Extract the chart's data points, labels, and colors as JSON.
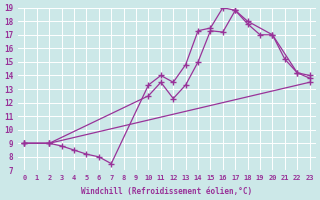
{
  "title": "",
  "xlabel": "Windchill (Refroidissement éolien,°C)",
  "ylabel": "",
  "background_color": "#cce8e8",
  "line_color": "#993399",
  "grid_color": "#ffffff",
  "xlim": [
    -0.5,
    23.5
  ],
  "ylim": [
    7,
    19
  ],
  "xticks": [
    0,
    1,
    2,
    3,
    4,
    5,
    6,
    7,
    8,
    9,
    10,
    11,
    12,
    13,
    14,
    15,
    16,
    17,
    18,
    19,
    20,
    21,
    22,
    23
  ],
  "yticks": [
    7,
    8,
    9,
    10,
    11,
    12,
    13,
    14,
    15,
    16,
    17,
    18,
    19
  ],
  "series": [
    {
      "x": [
        0,
        2,
        23
      ],
      "y": [
        9,
        9,
        13.5
      ]
    },
    {
      "x": [
        0,
        2,
        3,
        4,
        5,
        6,
        7,
        10,
        11,
        12,
        13,
        14,
        15,
        16,
        17,
        18,
        20,
        21,
        22,
        23
      ],
      "y": [
        9,
        9,
        8.8,
        8.5,
        8.2,
        8.0,
        7.5,
        13.3,
        14.0,
        13.5,
        14.8,
        17.3,
        17.5,
        19.0,
        18.8,
        18.0,
        17.0,
        15.2,
        14.2,
        14.0
      ]
    },
    {
      "x": [
        0,
        2,
        10,
        11,
        12,
        13,
        14,
        15,
        16,
        17,
        18,
        19,
        20,
        22,
        23
      ],
      "y": [
        9,
        9,
        12.5,
        13.5,
        12.3,
        13.3,
        15.0,
        17.3,
        17.2,
        18.8,
        17.8,
        17.0,
        17.0,
        14.2,
        13.8
      ]
    }
  ]
}
